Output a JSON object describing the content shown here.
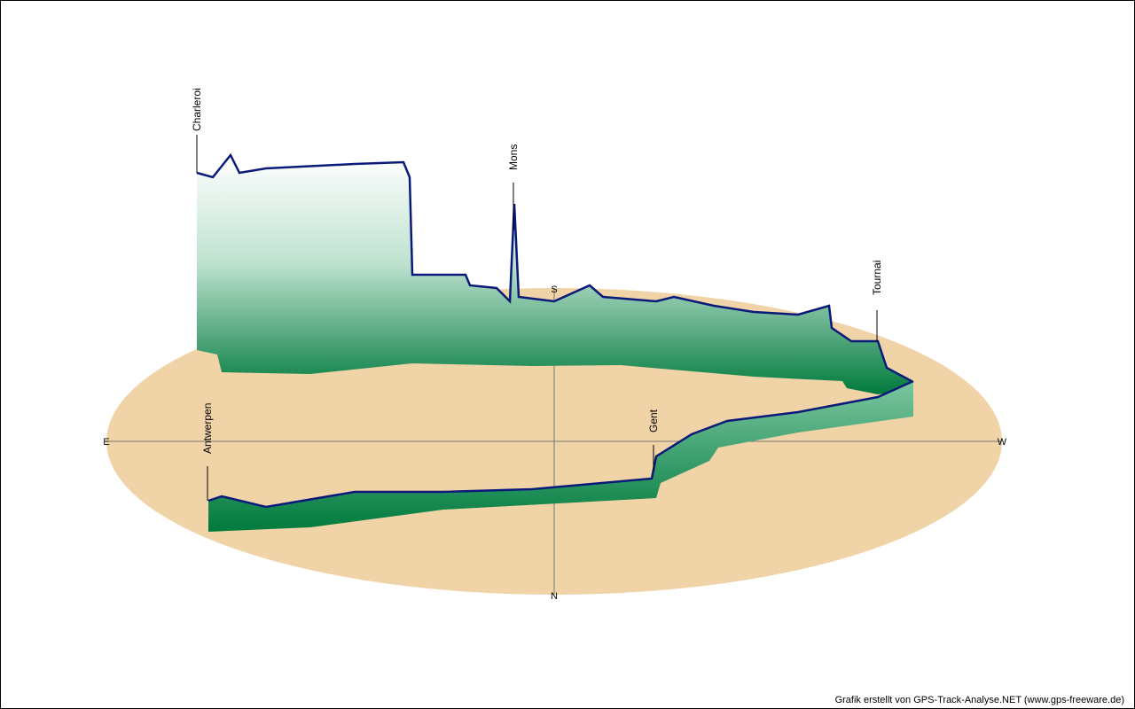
{
  "compass": {
    "east": "E",
    "west": "W",
    "south": "S",
    "north": "N"
  },
  "places": [
    {
      "label": "Charleroi"
    },
    {
      "label": "Mons"
    },
    {
      "label": "Tournai"
    },
    {
      "label": "Gent"
    },
    {
      "label": "Antwerpen"
    }
  ],
  "credit": "Grafik erstellt von GPS-Track-Analyse.NET (www.gps-freeware.de)"
}
